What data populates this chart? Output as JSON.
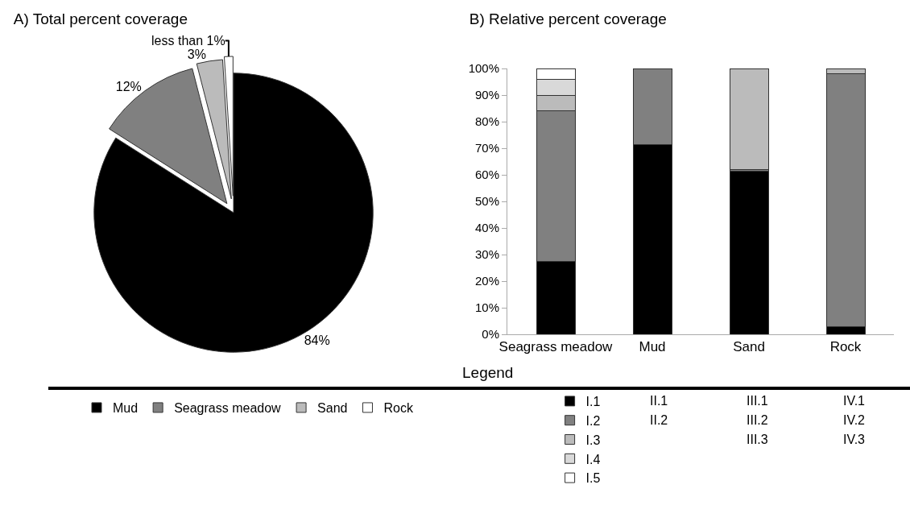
{
  "chart_data": [
    {
      "type": "pie",
      "title": "A) Total percent coverage",
      "categories": [
        "Mud",
        "Seagrass meadow",
        "Sand",
        "Rock"
      ],
      "values": [
        84,
        12,
        3,
        1
      ],
      "colors": [
        "#000000",
        "#808080",
        "#bbbbbb",
        "#ffffff"
      ],
      "value_labels": [
        "84%",
        "12%",
        "3%",
        "less than 1%"
      ],
      "legend": "bottom"
    },
    {
      "type": "bar",
      "title": "B) Relative percent coverage",
      "stacked": true,
      "categories": [
        "Seagrass meadow",
        "Mud",
        "Sand",
        "Rock"
      ],
      "series": [
        {
          "name": "I.1",
          "color": "#000000",
          "values": [
            27.5,
            71.5,
            61.5,
            3
          ]
        },
        {
          "name": "I.2",
          "color": "#808080",
          "values": [
            56.5,
            28.5,
            0.5,
            95
          ]
        },
        {
          "name": "I.3",
          "color": "#bbbbbb",
          "values": [
            6,
            null,
            38,
            2
          ]
        },
        {
          "name": "I.4",
          "color": "#d9d9d9",
          "values": [
            6,
            null,
            null,
            null
          ]
        },
        {
          "name": "I.5",
          "color": "#ffffff",
          "values": [
            4,
            null,
            null,
            null
          ]
        }
      ],
      "ylim": [
        0,
        100
      ],
      "yticks": [
        {
          "value": 0,
          "label": "0%"
        },
        {
          "value": 10,
          "label": "10%"
        },
        {
          "value": 20,
          "label": "20%"
        },
        {
          "value": 30,
          "label": "30%"
        },
        {
          "value": 40,
          "label": "40%"
        },
        {
          "value": 50,
          "label": "50%"
        },
        {
          "value": 60,
          "label": "60%"
        },
        {
          "value": 70,
          "label": "70%"
        },
        {
          "value": 80,
          "label": "80%"
        },
        {
          "value": 90,
          "label": "90%"
        },
        {
          "value": 100,
          "label": "100%"
        }
      ],
      "grid": false,
      "legend": "bottom",
      "annotations": [
        "Legend",
        "II.1",
        "II.2",
        "III.1",
        "III.2",
        "III.3",
        "IV.1",
        "IV.2",
        "IV.3"
      ]
    }
  ]
}
